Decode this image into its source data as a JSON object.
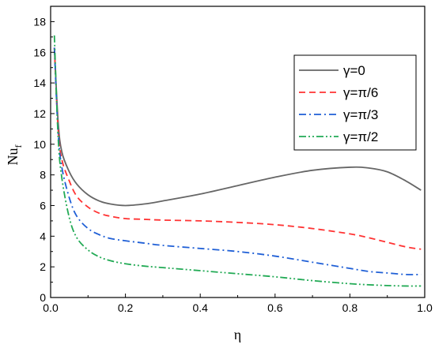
{
  "chart_data": {
    "type": "line",
    "xlabel": "η",
    "ylabel": "Nu",
    "ylabel_sub": "f",
    "xlim": [
      0,
      1
    ],
    "ylim": [
      0,
      19
    ],
    "xticks": [
      0.0,
      0.2,
      0.4,
      0.6,
      0.8,
      1.0
    ],
    "xtick_labels": [
      "0.0",
      "0.2",
      "0.4",
      "0.6",
      "0.8",
      "1.0"
    ],
    "yticks": [
      0,
      2,
      4,
      6,
      8,
      10,
      12,
      14,
      16,
      18
    ],
    "ytick_labels": [
      "0",
      "2",
      "4",
      "6",
      "8",
      "10",
      "12",
      "14",
      "16",
      "18"
    ],
    "grid": false,
    "legend_position": "top-right",
    "series": [
      {
        "name": "γ=0",
        "color": "#666666",
        "dash": "solid",
        "x": [
          0.01,
          0.02,
          0.03,
          0.05,
          0.07,
          0.1,
          0.13,
          0.16,
          0.2,
          0.25,
          0.3,
          0.4,
          0.5,
          0.6,
          0.7,
          0.8,
          0.85,
          0.9,
          0.95,
          0.99
        ],
        "y": [
          16.3,
          11.5,
          9.5,
          8.2,
          7.4,
          6.7,
          6.3,
          6.1,
          6.0,
          6.1,
          6.3,
          6.75,
          7.3,
          7.85,
          8.3,
          8.5,
          8.45,
          8.2,
          7.6,
          7.0
        ]
      },
      {
        "name": "γ=π/6",
        "color": "#ff3333",
        "dash": "dashed",
        "x": [
          0.01,
          0.02,
          0.03,
          0.05,
          0.07,
          0.1,
          0.13,
          0.16,
          0.2,
          0.25,
          0.3,
          0.4,
          0.5,
          0.6,
          0.7,
          0.8,
          0.85,
          0.9,
          0.95,
          0.99
        ],
        "y": [
          16.3,
          11.0,
          9.0,
          7.6,
          6.6,
          5.9,
          5.5,
          5.3,
          5.15,
          5.1,
          5.05,
          5.0,
          4.9,
          4.75,
          4.5,
          4.15,
          3.9,
          3.6,
          3.3,
          3.15
        ]
      },
      {
        "name": "γ=π/3",
        "color": "#1f5fd6",
        "dash": "dashdot",
        "x": [
          0.01,
          0.02,
          0.03,
          0.05,
          0.07,
          0.1,
          0.13,
          0.16,
          0.2,
          0.25,
          0.3,
          0.4,
          0.5,
          0.6,
          0.7,
          0.8,
          0.85,
          0.9,
          0.95,
          0.99
        ],
        "y": [
          16.3,
          10.8,
          8.5,
          6.5,
          5.3,
          4.5,
          4.1,
          3.85,
          3.7,
          3.55,
          3.4,
          3.2,
          3.0,
          2.7,
          2.3,
          1.9,
          1.7,
          1.6,
          1.5,
          1.5
        ]
      },
      {
        "name": "γ=π/2",
        "color": "#22aa55",
        "dash": "dashdotdot",
        "x": [
          0.01,
          0.02,
          0.03,
          0.05,
          0.07,
          0.1,
          0.13,
          0.16,
          0.2,
          0.25,
          0.3,
          0.4,
          0.5,
          0.6,
          0.7,
          0.8,
          0.85,
          0.9,
          0.95,
          0.99
        ],
        "y": [
          17.1,
          10.5,
          7.8,
          5.2,
          3.9,
          3.1,
          2.65,
          2.4,
          2.2,
          2.05,
          1.95,
          1.75,
          1.55,
          1.35,
          1.1,
          0.9,
          0.83,
          0.78,
          0.75,
          0.75
        ]
      }
    ]
  }
}
